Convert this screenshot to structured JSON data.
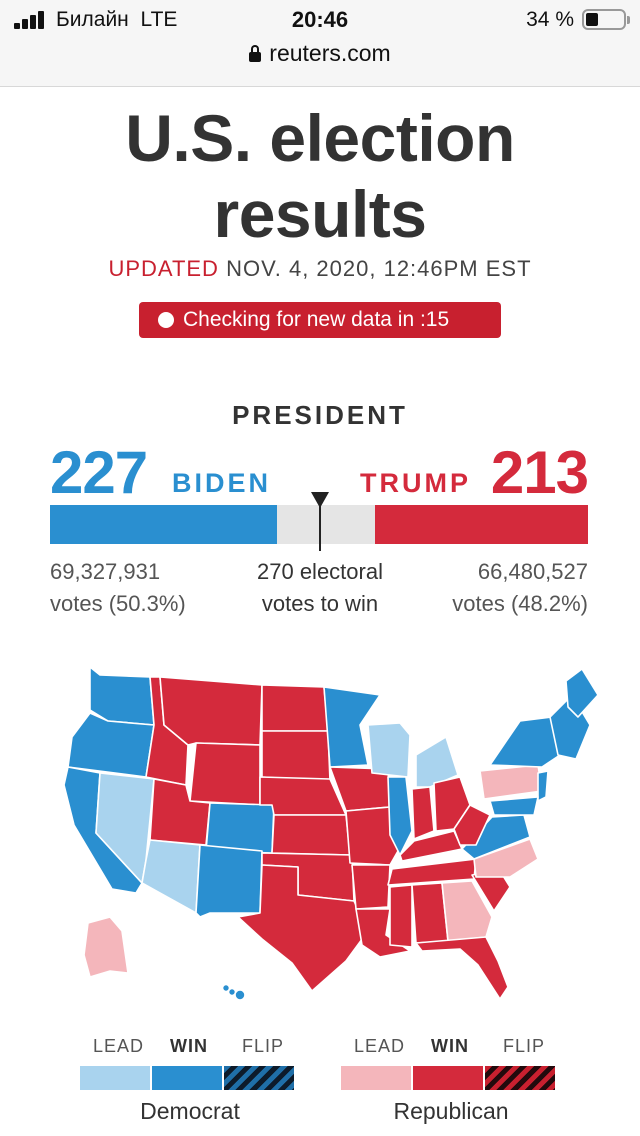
{
  "status_bar": {
    "carrier": "Билайн",
    "network": "LTE",
    "time": "20:46",
    "battery": "34 %",
    "battery_level": 0.34
  },
  "browser": {
    "url": "reuters.com",
    "lock_icon": "lock-icon"
  },
  "page": {
    "title_line1": "U.S. election",
    "title_line2": "results",
    "updated_label": "UPDATED",
    "updated_value": "NOV. 4, 2020, 12:46PM EST",
    "checking_text": "Checking for new data in :15"
  },
  "president": {
    "heading": "PRESIDENT",
    "threshold_label_line1": "270 electoral",
    "threshold_label_line2": "votes to win",
    "electoral_total": 538,
    "threshold": 270,
    "dem": {
      "name": "BIDEN",
      "electoral": "227",
      "electoral_value": 227,
      "votes": "69,327,931",
      "share": "votes (50.3%)",
      "color": "#2a8fd0"
    },
    "rep": {
      "name": "TRUMP",
      "electoral": "213",
      "electoral_value": 213,
      "votes": "66,480,527",
      "share": "votes (48.2%)",
      "color": "#d42a3c"
    }
  },
  "map": {
    "colors": {
      "dem_lead": "#a9d3ee",
      "dem_win": "#2a8fd0",
      "rep_lead": "#f4b6bb",
      "rep_win": "#d42a3c"
    }
  },
  "legend": {
    "lead": "LEAD",
    "win": "WIN",
    "flip": "FLIP",
    "democrat": "Democrat",
    "republican": "Republican"
  }
}
